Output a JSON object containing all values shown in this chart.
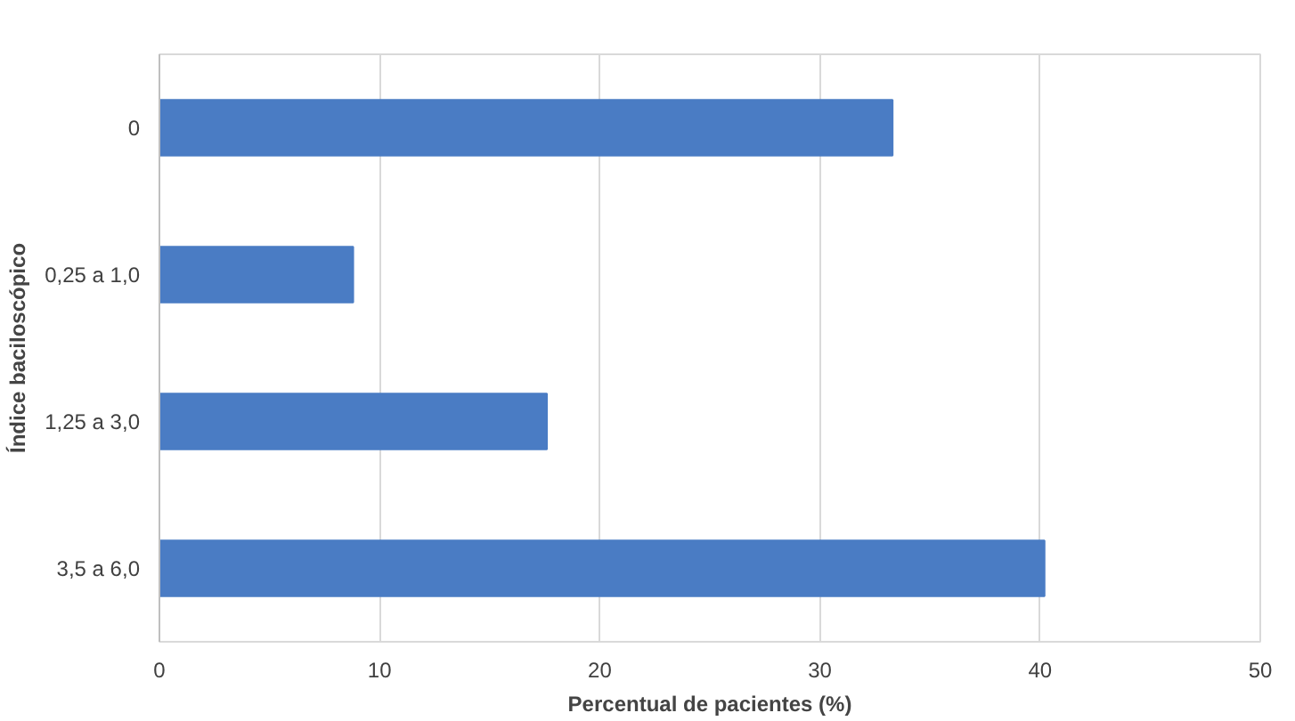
{
  "chart_data": {
    "type": "bar",
    "orientation": "horizontal",
    "xlabel": "Percentual de pacientes (%)",
    "ylabel": "Índice baciloscópico",
    "categories": [
      "0",
      "0,25 a 1,0",
      "1,25 a 3,0",
      "3,5 a 6,0"
    ],
    "values": [
      33.3,
      8.8,
      17.6,
      40.2
    ],
    "color": "#4a7cc4",
    "xlim": [
      0,
      50
    ],
    "xticks": [
      0,
      10,
      20,
      30,
      40,
      50
    ],
    "grid": "x"
  }
}
